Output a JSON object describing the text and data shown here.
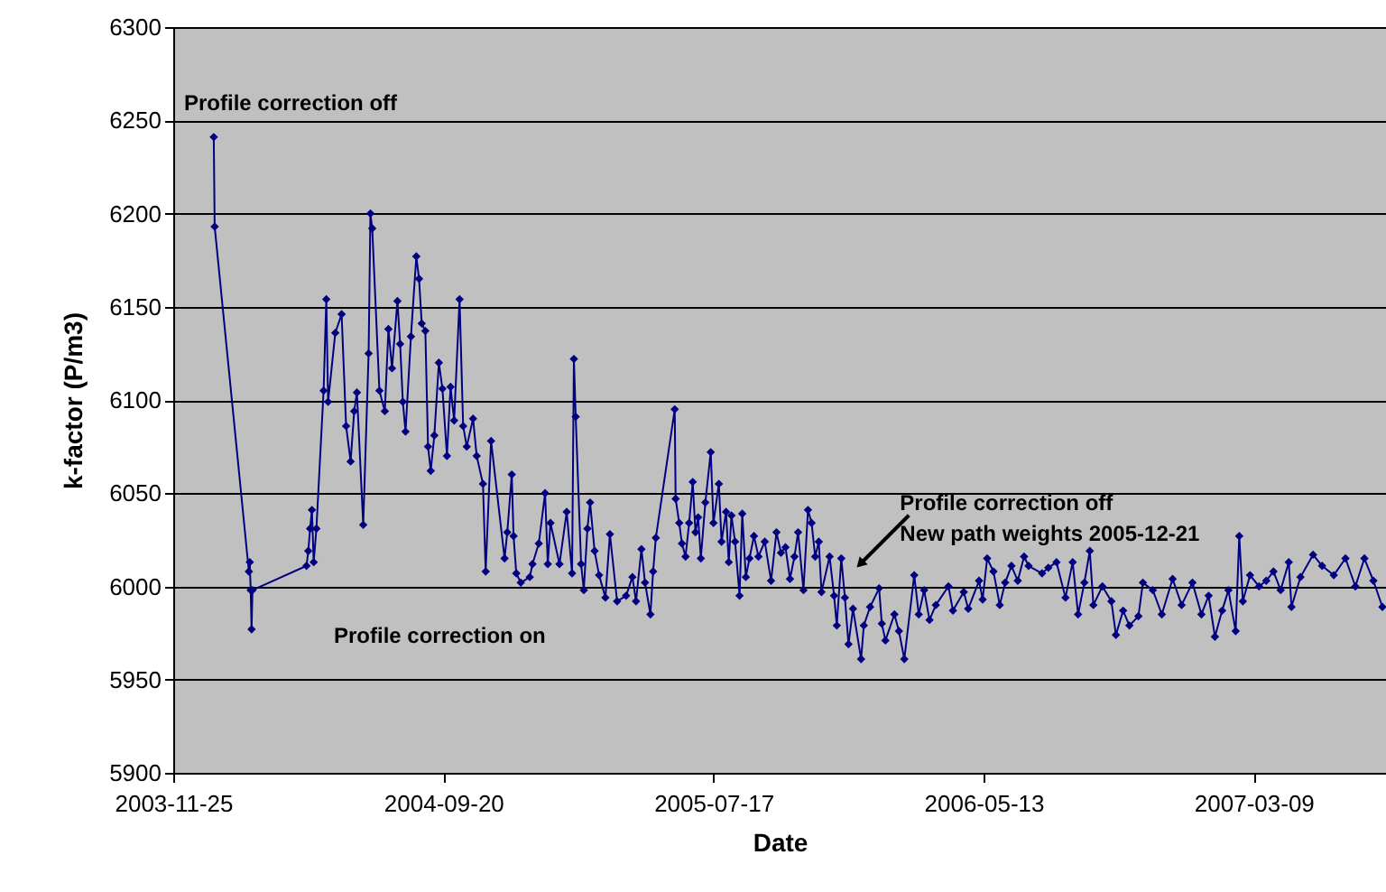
{
  "chart_data": {
    "type": "line",
    "xlabel": "Date",
    "ylabel": "k-factor (P/m3)",
    "marker": "diamond",
    "line_style": "solid",
    "grid": "y",
    "xlim": [
      "2003-11-25",
      "2007-08-03"
    ],
    "xticks": [
      "2003-11-25",
      "2004-09-20",
      "2005-07-17",
      "2006-05-13",
      "2007-03-09"
    ],
    "ylim": [
      5900,
      6300
    ],
    "yticks": [
      5900,
      5950,
      6000,
      6050,
      6100,
      6150,
      6200,
      6250,
      6300
    ],
    "annotations": [
      "Profile correction off",
      "Profile correction on",
      {
        "text": "Profile correction off\nNew path weights 2005-12-21",
        "x": "2005-12-27",
        "y": 6012
      }
    ],
    "series": [
      {
        "color": "#000080",
        "x": [
          "2004-01-09",
          "2004-01-10",
          "2004-02-17",
          "2004-02-18",
          "2004-02-19",
          "2004-02-20",
          "2004-02-21",
          "2004-04-21",
          "2004-04-23",
          "2004-04-25",
          "2004-04-27",
          "2004-04-29",
          "2004-05-02",
          "2004-05-10",
          "2004-05-13",
          "2004-05-15",
          "2004-05-23",
          "2004-05-30",
          "2004-06-04",
          "2004-06-09",
          "2004-06-13",
          "2004-06-16",
          "2004-06-23",
          "2004-06-29",
          "2004-07-01",
          "2004-07-03",
          "2004-07-11",
          "2004-07-17",
          "2004-07-21",
          "2004-07-25",
          "2004-07-31",
          "2004-08-03",
          "2004-08-06",
          "2004-08-09",
          "2004-08-15",
          "2004-08-21",
          "2004-08-24",
          "2004-08-27",
          "2004-08-31",
          "2004-09-03",
          "2004-09-06",
          "2004-09-10",
          "2004-09-15",
          "2004-09-19",
          "2004-09-24",
          "2004-09-28",
          "2004-10-02",
          "2004-10-08",
          "2004-10-12",
          "2004-10-16",
          "2004-10-23",
          "2004-10-27",
          "2004-11-03",
          "2004-11-06",
          "2004-11-12",
          "2004-11-27",
          "2004-11-30",
          "2004-12-05",
          "2004-12-07",
          "2004-12-10",
          "2004-12-15",
          "2004-12-25",
          "2004-12-28",
          "2005-01-04",
          "2005-01-11",
          "2005-01-14",
          "2005-01-17",
          "2005-01-27",
          "2005-02-04",
          "2005-02-10",
          "2005-02-12",
          "2005-02-14",
          "2005-02-20",
          "2005-02-23",
          "2005-02-27",
          "2005-03-02",
          "2005-03-07",
          "2005-03-12",
          "2005-03-19",
          "2005-03-24",
          "2005-04-01",
          "2005-04-11",
          "2005-04-18",
          "2005-04-22",
          "2005-04-28",
          "2005-05-02",
          "2005-05-08",
          "2005-05-11",
          "2005-05-14",
          "2005-06-04",
          "2005-06-05",
          "2005-06-09",
          "2005-06-12",
          "2005-06-16",
          "2005-06-20",
          "2005-06-24",
          "2005-06-27",
          "2005-06-30",
          "2005-07-03",
          "2005-07-08",
          "2005-07-14",
          "2005-07-17",
          "2005-07-23",
          "2005-07-26",
          "2005-07-31",
          "2005-08-03",
          "2005-08-06",
          "2005-08-10",
          "2005-08-15",
          "2005-08-18",
          "2005-08-22",
          "2005-08-26",
          "2005-08-31",
          "2005-09-05",
          "2005-09-12",
          "2005-09-19",
          "2005-09-25",
          "2005-09-30",
          "2005-10-05",
          "2005-10-10",
          "2005-10-15",
          "2005-10-19",
          "2005-10-25",
          "2005-10-30",
          "2005-11-03",
          "2005-11-07",
          "2005-11-11",
          "2005-11-14",
          "2005-11-23",
          "2005-11-28",
          "2005-12-01",
          "2005-12-06",
          "2005-12-10",
          "2005-12-14",
          "2005-12-19",
          "2005-12-28",
          "2005-12-31",
          "2006-01-07",
          "2006-01-17",
          "2006-01-20",
          "2006-01-24",
          "2006-02-03",
          "2006-02-08",
          "2006-02-14",
          "2006-02-25",
          "2006-03-02",
          "2006-03-08",
          "2006-03-14",
          "2006-03-21",
          "2006-04-04",
          "2006-04-09",
          "2006-04-21",
          "2006-04-26",
          "2006-05-08",
          "2006-05-12",
          "2006-05-17",
          "2006-05-24",
          "2006-05-31",
          "2006-06-06",
          "2006-06-13",
          "2006-06-20",
          "2006-06-27",
          "2006-07-02",
          "2006-07-17",
          "2006-07-24",
          "2006-08-02",
          "2006-08-12",
          "2006-08-20",
          "2006-08-26",
          "2006-09-02",
          "2006-09-08",
          "2006-09-12",
          "2006-09-22",
          "2006-10-02",
          "2006-10-07",
          "2006-10-15",
          "2006-10-22",
          "2006-11-01",
          "2006-11-06",
          "2006-11-17",
          "2006-11-27",
          "2006-12-09",
          "2006-12-19",
          "2006-12-31",
          "2007-01-10",
          "2007-01-18",
          "2007-01-25",
          "2007-02-02",
          "2007-02-09",
          "2007-02-17",
          "2007-02-21",
          "2007-02-25",
          "2007-03-05",
          "2007-03-15",
          "2007-03-23",
          "2007-03-31",
          "2007-04-08",
          "2007-04-17",
          "2007-04-20",
          "2007-04-30",
          "2007-05-14",
          "2007-05-24",
          "2007-06-06",
          "2007-06-19",
          "2007-06-30",
          "2007-07-10",
          "2007-07-20",
          "2007-07-30"
        ],
        "values": [
          6241,
          6193,
          6008,
          6013,
          5998,
          5977,
          5998,
          6011,
          6019,
          6031,
          6041,
          6013,
          6031,
          6105,
          6154,
          6099,
          6136,
          6146,
          6086,
          6067,
          6094,
          6104,
          6033,
          6125,
          6200,
          6192,
          6105,
          6094,
          6138,
          6117,
          6153,
          6130,
          6099,
          6083,
          6134,
          6177,
          6165,
          6141,
          6137,
          6075,
          6062,
          6081,
          6120,
          6106,
          6070,
          6107,
          6089,
          6154,
          6086,
          6075,
          6090,
          6070,
          6055,
          6008,
          6078,
          6015,
          6029,
          6060,
          6027,
          6007,
          6002,
          6005,
          6012,
          6023,
          6050,
          6012,
          6034,
          6012,
          6040,
          6007,
          6122,
          6091,
          6012,
          5998,
          6031,
          6045,
          6019,
          6006,
          5994,
          6028,
          5992,
          5995,
          6005,
          5992,
          6020,
          6002,
          5985,
          6008,
          6026,
          6095,
          6047,
          6034,
          6023,
          6016,
          6034,
          6056,
          6029,
          6037,
          6015,
          6045,
          6072,
          6034,
          6055,
          6024,
          6040,
          6013,
          6038,
          6024,
          5995,
          6039,
          6005,
          6015,
          6027,
          6016,
          6024,
          6003,
          6029,
          6018,
          6021,
          6004,
          6016,
          6029,
          5998,
          6041,
          6034,
          6016,
          6024,
          5997,
          6016,
          5995,
          5979,
          6015,
          5994,
          5969,
          5988,
          5961,
          5979,
          5989,
          5999,
          5980,
          5971,
          5985,
          5976,
          5961,
          6006,
          5985,
          5998,
          5982,
          5990,
          6000,
          5987,
          5997,
          5988,
          6003,
          5993,
          6015,
          6008,
          5990,
          6002,
          6011,
          6003,
          6016,
          6011,
          6007,
          6010,
          6013,
          5994,
          6013,
          5985,
          6002,
          6019,
          5990,
          6000,
          5992,
          5974,
          5987,
          5979,
          5984,
          6002,
          5998,
          5985,
          6004,
          5990,
          6002,
          5985,
          5995,
          5973,
          5987,
          5998,
          5976,
          6027,
          5992,
          6006,
          6000,
          6003,
          6008,
          5998,
          6013,
          5989,
          6005,
          6017,
          6011,
          6006,
          6015,
          6000,
          6015,
          6003,
          5989
        ]
      }
    ]
  }
}
